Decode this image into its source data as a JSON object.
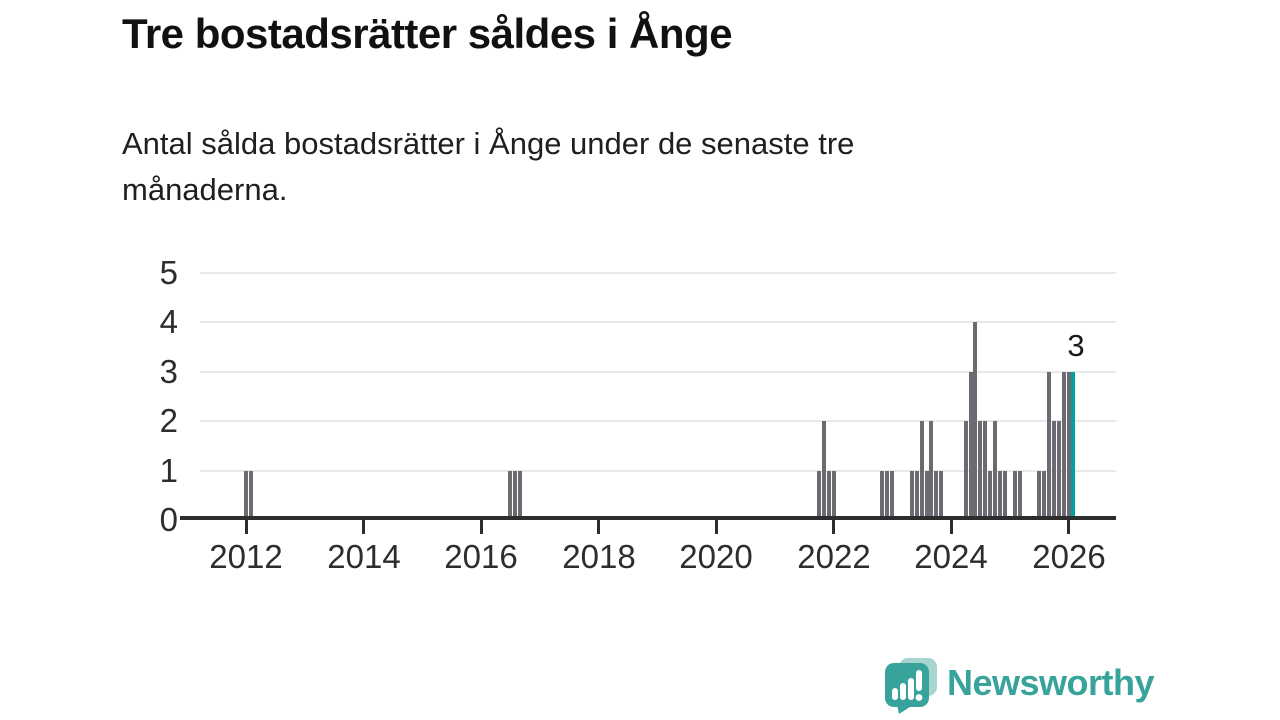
{
  "header": {
    "title": "Tre bostadsrätter såldes i Ånge",
    "subtitle": "Antal sålda bostadsrätter i Ånge under de senaste tre månaderna.",
    "subtitle_lines": [
      "Antal sålda bostadsrätter i Ånge under de senaste tre",
      "månaderna."
    ]
  },
  "colors": {
    "bar": "#6b6b71",
    "highlight": "#00a39b",
    "grid": "#e8e8e8",
    "axis": "#2d2d2d",
    "logo_teal": "#38a39b",
    "logo_teal_light": "#a7d4cf"
  },
  "chart_data": {
    "type": "bar",
    "title": "Tre bostadsrätter såldes i Ånge",
    "subtitle": "Antal sålda bostadsrätter i Ånge under de senaste tre månaderna.",
    "xlabel": "",
    "ylabel": "",
    "ylim": [
      0,
      5
    ],
    "yticks": [
      0,
      1,
      2,
      3,
      4,
      5
    ],
    "xticks": [
      2012,
      2014,
      2016,
      2018,
      2020,
      2022,
      2024,
      2026
    ],
    "x_range_years": [
      2011.2,
      2026.8
    ],
    "grid": "horizontal",
    "legend": "none",
    "annotation": {
      "text": "3",
      "month": "2026-02"
    },
    "points": [
      {
        "month": "2012-01",
        "value": 1
      },
      {
        "month": "2012-02",
        "value": 1
      },
      {
        "month": "2016-07",
        "value": 1
      },
      {
        "month": "2016-08",
        "value": 1
      },
      {
        "month": "2016-09",
        "value": 1
      },
      {
        "month": "2021-10",
        "value": 1
      },
      {
        "month": "2021-11",
        "value": 2
      },
      {
        "month": "2021-12",
        "value": 1
      },
      {
        "month": "2022-01",
        "value": 1
      },
      {
        "month": "2022-11",
        "value": 1
      },
      {
        "month": "2022-12",
        "value": 1
      },
      {
        "month": "2023-01",
        "value": 1
      },
      {
        "month": "2023-05",
        "value": 1
      },
      {
        "month": "2023-06",
        "value": 1
      },
      {
        "month": "2023-07",
        "value": 2
      },
      {
        "month": "2023-08",
        "value": 1
      },
      {
        "month": "2023-09",
        "value": 2
      },
      {
        "month": "2023-10",
        "value": 1
      },
      {
        "month": "2023-11",
        "value": 1
      },
      {
        "month": "2024-04",
        "value": 2
      },
      {
        "month": "2024-05",
        "value": 3
      },
      {
        "month": "2024-06",
        "value": 4
      },
      {
        "month": "2024-07",
        "value": 2
      },
      {
        "month": "2024-08",
        "value": 2
      },
      {
        "month": "2024-09",
        "value": 1
      },
      {
        "month": "2024-10",
        "value": 2
      },
      {
        "month": "2024-11",
        "value": 1
      },
      {
        "month": "2024-12",
        "value": 1
      },
      {
        "month": "2025-02",
        "value": 1
      },
      {
        "month": "2025-03",
        "value": 1
      },
      {
        "month": "2025-07",
        "value": 1
      },
      {
        "month": "2025-08",
        "value": 1
      },
      {
        "month": "2025-09",
        "value": 3
      },
      {
        "month": "2025-10",
        "value": 2
      },
      {
        "month": "2025-11",
        "value": 2
      },
      {
        "month": "2025-12",
        "value": 3
      },
      {
        "month": "2026-01",
        "value": 3
      },
      {
        "month": "2026-02",
        "value": 3,
        "highlight": true
      }
    ]
  },
  "footer": {
    "logo_text": "Newsworthy",
    "logo_icon": "newsworthy-speech-bubble-chart-icon"
  }
}
